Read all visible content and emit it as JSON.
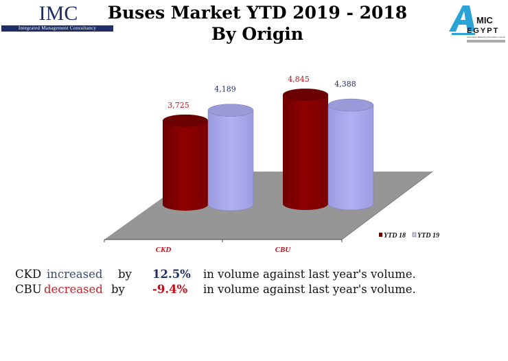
{
  "header": {
    "title_line1": "Buses Market YTD 2019 - 2018",
    "title_line2": "By Origin",
    "left_logo": {
      "name": "IMC",
      "subtitle": "Integrated Management Consultancy"
    },
    "right_logo": {
      "name": "AMIC EGYPT",
      "subtitle": "Automotive Marketing Information Council"
    }
  },
  "chart_data": {
    "type": "bar",
    "style": "3d-cylinder",
    "categories": [
      "CKD",
      "CBU"
    ],
    "series": [
      {
        "name": "YTD 18",
        "values": [
          3725,
          4845
        ],
        "labels": [
          "3,725",
          "4,845"
        ],
        "color": "#8b0000"
      },
      {
        "name": "YTD 19",
        "values": [
          4189,
          4388
        ],
        "labels": [
          "4,189",
          "4,388"
        ],
        "color": "#aaaaee"
      }
    ],
    "legend": "bottom-right",
    "grid": false,
    "floor_color": "#969696"
  },
  "summary": [
    {
      "subject": "CKD",
      "verb": "increased",
      "by": "by",
      "value": "12.5%",
      "rest": "in volume against last year's volume.",
      "direction": "up"
    },
    {
      "subject": "CBU",
      "verb": "decreased",
      "by": "by",
      "value": "-9.4%",
      "rest": "in volume against last year's volume.",
      "direction": "down"
    }
  ]
}
